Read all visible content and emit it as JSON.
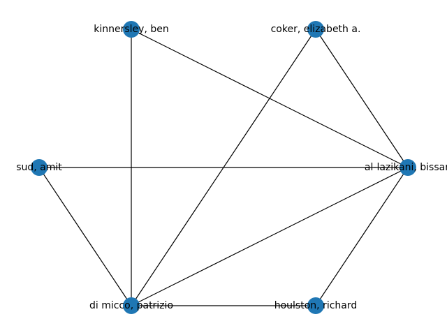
{
  "graph": {
    "node_color": "#1f77b4",
    "edge_color": "#000000",
    "nodes": [
      {
        "id": "kinnersley",
        "label": "kinnersley, ben"
      },
      {
        "id": "coker",
        "label": "coker, elizabeth a."
      },
      {
        "id": "sud",
        "label": "sud, amit"
      },
      {
        "id": "al_lazikani",
        "label": "al-lazikani, bissan"
      },
      {
        "id": "di_micco",
        "label": "di micco, patrizio"
      },
      {
        "id": "houlston",
        "label": "houlston, richard"
      }
    ],
    "edges": [
      [
        "kinnersley",
        "al_lazikani"
      ],
      [
        "kinnersley",
        "di_micco"
      ],
      [
        "coker",
        "al_lazikani"
      ],
      [
        "coker",
        "di_micco"
      ],
      [
        "sud",
        "al_lazikani"
      ],
      [
        "sud",
        "di_micco"
      ],
      [
        "al_lazikani",
        "di_micco"
      ],
      [
        "al_lazikani",
        "houlston"
      ],
      [
        "di_micco",
        "houlston"
      ]
    ]
  }
}
